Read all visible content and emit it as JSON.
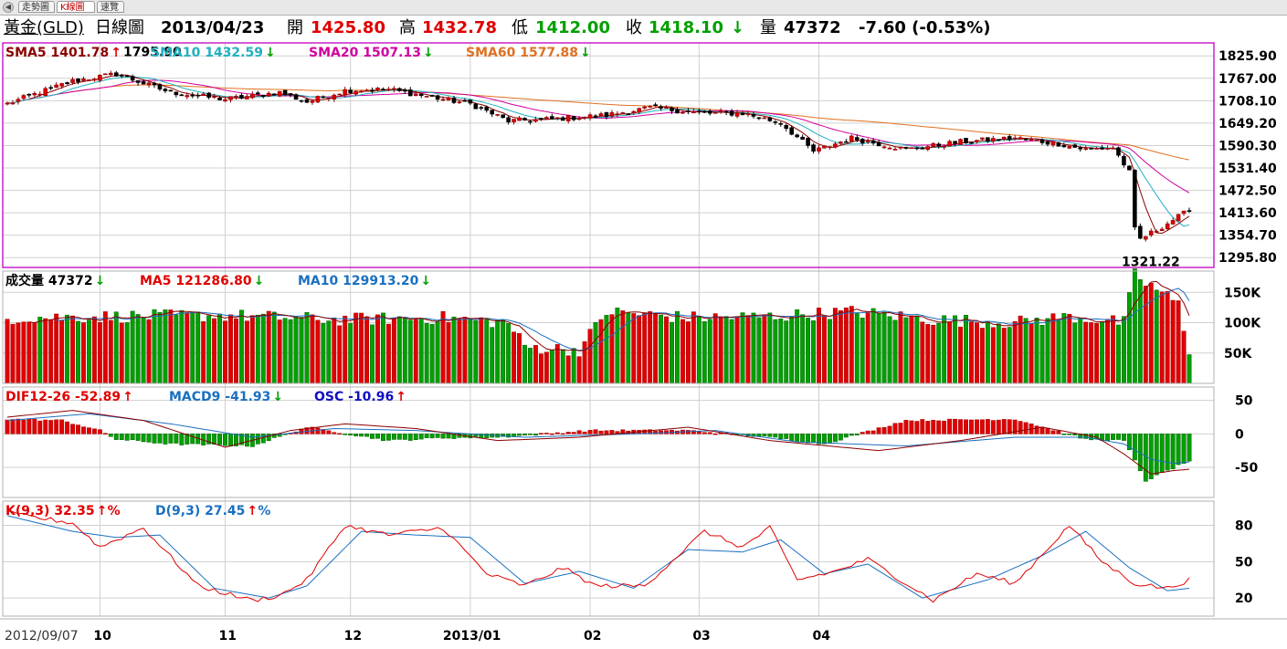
{
  "tabs": [
    {
      "label": "走勢圖",
      "active": false
    },
    {
      "label": "K線圖",
      "active": true
    },
    {
      "label": "速覽",
      "active": false
    }
  ],
  "quote": {
    "name": "黃金(GLD)",
    "chart_type": "日線圖",
    "date": "2013/04/23",
    "open_label": "開",
    "open": "1425.80",
    "high_label": "高",
    "high": "1432.78",
    "low_label": "低",
    "low": "1412.00",
    "close_label": "收",
    "close": "1418.10",
    "close_arrow": "↓",
    "vol_label": "量",
    "volume": "47372",
    "change": "-7.60 (-0.53%)"
  },
  "colors": {
    "up": "#e00000",
    "down": "#00a000",
    "border": "#c000c0",
    "sma5": "#8b0000",
    "sma10": "#20b0c0",
    "sma20": "#d000a0",
    "sma60": "#e07020",
    "ma5_vol": "#e00000",
    "ma10_vol": "#1a70c0",
    "dif": "#e00000",
    "macd": "#1a70c0",
    "osc": "#1010c0",
    "k": "#e00000",
    "d": "#1a70c0",
    "grid": "#d0d0d0"
  },
  "chart_data": [
    {
      "type": "candlestick",
      "panel": "price",
      "legend": [
        {
          "name": "SMA5",
          "value": "1401.78",
          "arrow": "↑"
        },
        {
          "name": "SMA10",
          "value": "1432.59",
          "arrow": "↓"
        },
        {
          "name": "SMA20",
          "value": "1507.13",
          "arrow": "↓"
        },
        {
          "name": "SMA60",
          "value": "1577.88",
          "arrow": "↓"
        }
      ],
      "y_ticks": [
        "1825.90",
        "1767.00",
        "1708.10",
        "1649.20",
        "1590.30",
        "1531.40",
        "1472.50",
        "1413.60",
        "1354.70",
        "1295.80"
      ],
      "ylim": [
        1270,
        1860
      ],
      "annotations": [
        {
          "label": "1795.90",
          "value": 1795.9
        },
        {
          "label": "1321.22",
          "value": 1321.22
        }
      ],
      "key_points": [
        [
          0,
          1700
        ],
        [
          12,
          1760
        ],
        [
          20,
          1778
        ],
        [
          30,
          1730
        ],
        [
          40,
          1712
        ],
        [
          50,
          1730
        ],
        [
          55,
          1705
        ],
        [
          62,
          1735
        ],
        [
          70,
          1738
        ],
        [
          80,
          1712
        ],
        [
          85,
          1700
        ],
        [
          92,
          1655
        ],
        [
          100,
          1660
        ],
        [
          110,
          1670
        ],
        [
          118,
          1690
        ],
        [
          128,
          1675
        ],
        [
          135,
          1675
        ],
        [
          142,
          1650
        ],
        [
          148,
          1575
        ],
        [
          155,
          1610
        ],
        [
          165,
          1580
        ],
        [
          175,
          1600
        ],
        [
          185,
          1610
        ],
        [
          193,
          1595
        ],
        [
          198,
          1580
        ],
        [
          203,
          1585
        ],
        [
          206,
          1520
        ],
        [
          207,
          1370
        ],
        [
          208,
          1345
        ],
        [
          211,
          1368
        ],
        [
          214,
          1395
        ],
        [
          217,
          1420
        ]
      ]
    },
    {
      "type": "bar",
      "panel": "volume",
      "legend": [
        {
          "name": "成交量",
          "value": "47372",
          "arrow": "↓"
        },
        {
          "name": "MA5",
          "value": "121286.80",
          "arrow": "↓"
        },
        {
          "name": "MA10",
          "value": "129913.20",
          "arrow": "↓"
        }
      ],
      "y_ticks": [
        "150K",
        "100K",
        "50K"
      ],
      "ylim": [
        0,
        185000
      ],
      "key_points": [
        [
          0,
          108000
        ],
        [
          20,
          110000
        ],
        [
          40,
          112000
        ],
        [
          60,
          105000
        ],
        [
          80,
          108000
        ],
        [
          92,
          100000
        ],
        [
          95,
          60000
        ],
        [
          105,
          55000
        ],
        [
          110,
          118000
        ],
        [
          125,
          108000
        ],
        [
          140,
          110000
        ],
        [
          155,
          118000
        ],
        [
          170,
          105000
        ],
        [
          185,
          100000
        ],
        [
          195,
          110000
        ],
        [
          205,
          100000
        ],
        [
          207,
          180000
        ],
        [
          209,
          165000
        ],
        [
          212,
          150000
        ],
        [
          215,
          130000
        ],
        [
          217,
          48000
        ]
      ]
    },
    {
      "type": "bar",
      "panel": "macd",
      "legend": [
        {
          "name": "DIF12-26",
          "value": "-52.89",
          "arrow": "↑"
        },
        {
          "name": "MACD9",
          "value": "-41.93",
          "arrow": "↓"
        },
        {
          "name": "OSC",
          "value": "-10.96",
          "arrow": "↑"
        }
      ],
      "y_ticks": [
        "50",
        "0",
        "-50"
      ],
      "ylim": [
        -95,
        70
      ],
      "dif_key_points": [
        [
          0,
          25
        ],
        [
          12,
          35
        ],
        [
          25,
          20
        ],
        [
          40,
          -20
        ],
        [
          52,
          5
        ],
        [
          62,
          15
        ],
        [
          75,
          8
        ],
        [
          90,
          -10
        ],
        [
          105,
          -5
        ],
        [
          125,
          10
        ],
        [
          140,
          -10
        ],
        [
          160,
          -25
        ],
        [
          175,
          -10
        ],
        [
          190,
          10
        ],
        [
          200,
          -5
        ],
        [
          205,
          -30
        ],
        [
          210,
          -60
        ],
        [
          214,
          -55
        ],
        [
          217,
          -52.89
        ]
      ],
      "macd_key_points": [
        [
          0,
          20
        ],
        [
          15,
          30
        ],
        [
          30,
          15
        ],
        [
          45,
          -5
        ],
        [
          60,
          8
        ],
        [
          75,
          5
        ],
        [
          95,
          -5
        ],
        [
          115,
          0
        ],
        [
          130,
          5
        ],
        [
          145,
          -12
        ],
        [
          165,
          -18
        ],
        [
          185,
          -5
        ],
        [
          198,
          -5
        ],
        [
          205,
          -15
        ],
        [
          210,
          -38
        ],
        [
          214,
          -44
        ],
        [
          217,
          -41.93
        ]
      ],
      "osc_key_points": [
        [
          0,
          22
        ],
        [
          10,
          20
        ],
        [
          17,
          5
        ],
        [
          20,
          -8
        ],
        [
          30,
          -15
        ],
        [
          45,
          -18
        ],
        [
          55,
          10
        ],
        [
          70,
          -10
        ],
        [
          80,
          -6
        ],
        [
          90,
          -5
        ],
        [
          107,
          5
        ],
        [
          125,
          5
        ],
        [
          140,
          -5
        ],
        [
          150,
          -15
        ],
        [
          165,
          20
        ],
        [
          185,
          22
        ],
        [
          198,
          -8
        ],
        [
          205,
          -10
        ],
        [
          209,
          -70
        ],
        [
          213,
          -55
        ],
        [
          217,
          -40
        ]
      ]
    },
    {
      "type": "line",
      "panel": "kd",
      "legend": [
        {
          "name": "K(9,3)",
          "value": "32.35",
          "arrow": "↑",
          "suffix": "%"
        },
        {
          "name": "D(9,3)",
          "value": "27.45",
          "arrow": "↑",
          "suffix": "%"
        }
      ],
      "y_ticks": [
        "80",
        "50",
        "20"
      ],
      "ylim": [
        5,
        100
      ],
      "k_key_points": [
        [
          0,
          90
        ],
        [
          12,
          82
        ],
        [
          17,
          62
        ],
        [
          25,
          78
        ],
        [
          35,
          30
        ],
        [
          45,
          18
        ],
        [
          50,
          22
        ],
        [
          55,
          35
        ],
        [
          62,
          80
        ],
        [
          70,
          72
        ],
        [
          80,
          78
        ],
        [
          88,
          40
        ],
        [
          95,
          30
        ],
        [
          102,
          45
        ],
        [
          108,
          30
        ],
        [
          117,
          30
        ],
        [
          128,
          75
        ],
        [
          135,
          62
        ],
        [
          140,
          78
        ],
        [
          145,
          35
        ],
        [
          152,
          42
        ],
        [
          158,
          52
        ],
        [
          170,
          18
        ],
        [
          178,
          40
        ],
        [
          185,
          32
        ],
        [
          195,
          80
        ],
        [
          201,
          50
        ],
        [
          207,
          32
        ],
        [
          213,
          28
        ],
        [
          217,
          35
        ]
      ],
      "d_key_points": [
        [
          0,
          88
        ],
        [
          12,
          75
        ],
        [
          20,
          70
        ],
        [
          28,
          72
        ],
        [
          38,
          28
        ],
        [
          48,
          20
        ],
        [
          55,
          30
        ],
        [
          65,
          75
        ],
        [
          75,
          72
        ],
        [
          85,
          70
        ],
        [
          95,
          32
        ],
        [
          105,
          42
        ],
        [
          115,
          28
        ],
        [
          125,
          60
        ],
        [
          135,
          58
        ],
        [
          142,
          68
        ],
        [
          150,
          40
        ],
        [
          158,
          48
        ],
        [
          168,
          20
        ],
        [
          180,
          35
        ],
        [
          190,
          55
        ],
        [
          198,
          75
        ],
        [
          206,
          45
        ],
        [
          213,
          26
        ],
        [
          217,
          28
        ]
      ]
    }
  ],
  "time_axis": {
    "labels": [
      {
        "text": "2012/09/07",
        "idx": 0
      },
      {
        "text": "10",
        "idx": 17
      },
      {
        "text": "11",
        "idx": 40
      },
      {
        "text": "12",
        "idx": 63
      },
      {
        "text": "2013/01",
        "idx": 85
      },
      {
        "text": "02",
        "idx": 107
      },
      {
        "text": "03",
        "idx": 127
      },
      {
        "text": "04",
        "idx": 149
      }
    ]
  }
}
